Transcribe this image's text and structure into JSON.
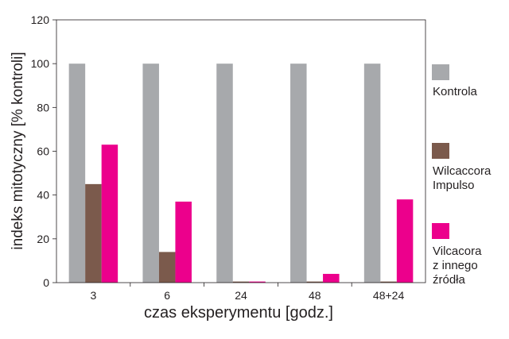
{
  "chart_data": {
    "type": "bar",
    "categories": [
      "3",
      "6",
      "24",
      "48",
      "48+24"
    ],
    "xlabel": "czas eksperymentu [godz.]",
    "ylabel": "indeks mitotyczny [% kontroli]",
    "ylim": [
      0,
      120
    ],
    "yticks": [
      0,
      20,
      40,
      60,
      80,
      100,
      120
    ],
    "grid": false,
    "legend_position": "right",
    "series": [
      {
        "name": [
          "Kontrola"
        ],
        "color": "#a7a9ac",
        "values": [
          100,
          100,
          100,
          100,
          100
        ]
      },
      {
        "name": [
          "Wilcaccora",
          "Impulso"
        ],
        "color": "#7b5a4c",
        "values": [
          45,
          14,
          0.5,
          0.5,
          0.5
        ]
      },
      {
        "name": [
          "Vilcacora",
          "z innego",
          "źródła"
        ],
        "color": "#ec008c",
        "values": [
          63,
          37,
          0.5,
          4,
          38
        ]
      }
    ]
  }
}
